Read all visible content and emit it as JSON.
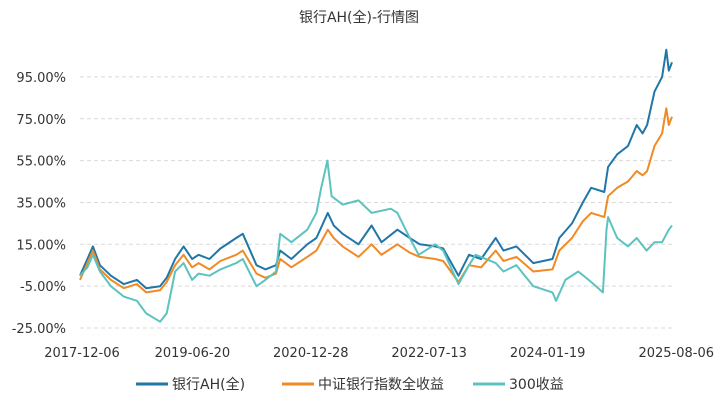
{
  "chart_data": {
    "type": "line",
    "title": "银行AH(全)-行情图",
    "y_unit": "%",
    "ylim": [
      -25,
      105
    ],
    "y_ticks": [
      -25,
      -5,
      15,
      35,
      55,
      75,
      95
    ],
    "y_tick_labels": [
      "-25.00%",
      "-5.00%",
      "15.00%",
      "35.00%",
      "55.00%",
      "75.00%",
      "95.00%"
    ],
    "x_range": [
      "2017-12-06",
      "2025-08-06"
    ],
    "x_tick_labels": [
      "2017-12-06",
      "2019-06-20",
      "2020-12-28",
      "2022-07-13",
      "2024-01-19",
      "2025-08-06"
    ],
    "grid": "horizontal dashed",
    "legend_position": "bottom",
    "series": [
      {
        "name": "银行AH(全)",
        "color": "#2176a8",
        "points": [
          [
            "2017-12-06",
            0
          ],
          [
            "2018-01-10",
            8
          ],
          [
            "2018-02-05",
            14
          ],
          [
            "2018-03-10",
            5
          ],
          [
            "2018-05-01",
            0
          ],
          [
            "2018-07-01",
            -4
          ],
          [
            "2018-09-01",
            -2
          ],
          [
            "2018-10-15",
            -6
          ],
          [
            "2018-12-20",
            -5
          ],
          [
            "2019-01-20",
            -1
          ],
          [
            "2019-03-01",
            8
          ],
          [
            "2019-04-10",
            14
          ],
          [
            "2019-05-20",
            8
          ],
          [
            "2019-06-20",
            10
          ],
          [
            "2019-08-10",
            8
          ],
          [
            "2019-10-01",
            13
          ],
          [
            "2019-12-15",
            18
          ],
          [
            "2020-01-15",
            20
          ],
          [
            "2020-03-20",
            5
          ],
          [
            "2020-05-01",
            3
          ],
          [
            "2020-06-20",
            5
          ],
          [
            "2020-07-10",
            12
          ],
          [
            "2020-09-01",
            8
          ],
          [
            "2020-11-15",
            15
          ],
          [
            "2020-12-28",
            18
          ],
          [
            "2021-02-20",
            30
          ],
          [
            "2021-03-20",
            24
          ],
          [
            "2021-05-01",
            20
          ],
          [
            "2021-07-15",
            15
          ],
          [
            "2021-09-15",
            24
          ],
          [
            "2021-11-01",
            16
          ],
          [
            "2022-01-15",
            22
          ],
          [
            "2022-03-15",
            18
          ],
          [
            "2022-05-01",
            15
          ],
          [
            "2022-07-13",
            14
          ],
          [
            "2022-08-20",
            13
          ],
          [
            "2022-10-31",
            0
          ],
          [
            "2022-12-20",
            10
          ],
          [
            "2023-02-15",
            8
          ],
          [
            "2023-04-25",
            18
          ],
          [
            "2023-06-01",
            12
          ],
          [
            "2023-08-01",
            14
          ],
          [
            "2023-10-20",
            6
          ],
          [
            "2024-01-19",
            8
          ],
          [
            "2024-02-20",
            18
          ],
          [
            "2024-04-20",
            25
          ],
          [
            "2024-06-10",
            35
          ],
          [
            "2024-07-20",
            42
          ],
          [
            "2024-09-20",
            40
          ],
          [
            "2024-10-08",
            52
          ],
          [
            "2024-11-20",
            58
          ],
          [
            "2025-01-10",
            62
          ],
          [
            "2025-02-20",
            72
          ],
          [
            "2025-03-20",
            68
          ],
          [
            "2025-04-10",
            72
          ],
          [
            "2025-05-15",
            88
          ],
          [
            "2025-06-20",
            95
          ],
          [
            "2025-07-10",
            108
          ],
          [
            "2025-07-22",
            98
          ],
          [
            "2025-08-06",
            102
          ]
        ]
      },
      {
        "name": "中证银行指数全收益",
        "color": "#f08a24",
        "points": [
          [
            "2017-12-06",
            -2
          ],
          [
            "2018-01-10",
            6
          ],
          [
            "2018-02-05",
            12
          ],
          [
            "2018-03-10",
            3
          ],
          [
            "2018-05-01",
            -2
          ],
          [
            "2018-07-01",
            -6
          ],
          [
            "2018-09-01",
            -4
          ],
          [
            "2018-10-15",
            -8
          ],
          [
            "2018-12-20",
            -7
          ],
          [
            "2019-01-20",
            -3
          ],
          [
            "2019-03-01",
            5
          ],
          [
            "2019-04-10",
            10
          ],
          [
            "2019-05-20",
            4
          ],
          [
            "2019-06-20",
            6
          ],
          [
            "2019-08-10",
            3
          ],
          [
            "2019-10-01",
            7
          ],
          [
            "2019-12-15",
            10
          ],
          [
            "2020-01-15",
            12
          ],
          [
            "2020-03-20",
            1
          ],
          [
            "2020-05-01",
            -1
          ],
          [
            "2020-06-20",
            1
          ],
          [
            "2020-07-10",
            8
          ],
          [
            "2020-09-01",
            4
          ],
          [
            "2020-11-15",
            9
          ],
          [
            "2020-12-28",
            12
          ],
          [
            "2021-02-20",
            22
          ],
          [
            "2021-03-20",
            18
          ],
          [
            "2021-05-01",
            14
          ],
          [
            "2021-07-15",
            9
          ],
          [
            "2021-09-15",
            15
          ],
          [
            "2021-11-01",
            10
          ],
          [
            "2022-01-15",
            15
          ],
          [
            "2022-03-15",
            11
          ],
          [
            "2022-05-01",
            9
          ],
          [
            "2022-07-13",
            8
          ],
          [
            "2022-08-20",
            7
          ],
          [
            "2022-10-31",
            -3
          ],
          [
            "2022-12-20",
            5
          ],
          [
            "2023-02-15",
            4
          ],
          [
            "2023-04-25",
            12
          ],
          [
            "2023-06-01",
            7
          ],
          [
            "2023-08-01",
            9
          ],
          [
            "2023-10-20",
            2
          ],
          [
            "2024-01-19",
            3
          ],
          [
            "2024-02-20",
            12
          ],
          [
            "2024-04-20",
            18
          ],
          [
            "2024-06-10",
            26
          ],
          [
            "2024-07-20",
            30
          ],
          [
            "2024-09-20",
            28
          ],
          [
            "2024-10-08",
            38
          ],
          [
            "2024-11-20",
            42
          ],
          [
            "2025-01-10",
            45
          ],
          [
            "2025-02-20",
            50
          ],
          [
            "2025-03-20",
            48
          ],
          [
            "2025-04-10",
            50
          ],
          [
            "2025-05-15",
            62
          ],
          [
            "2025-06-20",
            68
          ],
          [
            "2025-07-10",
            80
          ],
          [
            "2025-07-22",
            72
          ],
          [
            "2025-08-06",
            76
          ]
        ]
      },
      {
        "name": "300收益",
        "color": "#5cc3bf",
        "points": [
          [
            "2017-12-06",
            0
          ],
          [
            "2018-01-10",
            4
          ],
          [
            "2018-02-05",
            10
          ],
          [
            "2018-03-10",
            2
          ],
          [
            "2018-05-01",
            -5
          ],
          [
            "2018-07-01",
            -10
          ],
          [
            "2018-09-01",
            -12
          ],
          [
            "2018-10-15",
            -18
          ],
          [
            "2018-12-20",
            -22
          ],
          [
            "2019-01-20",
            -18
          ],
          [
            "2019-03-01",
            2
          ],
          [
            "2019-04-10",
            6
          ],
          [
            "2019-05-20",
            -2
          ],
          [
            "2019-06-20",
            1
          ],
          [
            "2019-08-10",
            0
          ],
          [
            "2019-10-01",
            3
          ],
          [
            "2019-12-15",
            6
          ],
          [
            "2020-01-15",
            8
          ],
          [
            "2020-03-20",
            -5
          ],
          [
            "2020-05-01",
            -2
          ],
          [
            "2020-06-20",
            2
          ],
          [
            "2020-07-10",
            20
          ],
          [
            "2020-09-01",
            16
          ],
          [
            "2020-11-15",
            22
          ],
          [
            "2020-12-28",
            30
          ],
          [
            "2021-01-20",
            42
          ],
          [
            "2021-02-18",
            55
          ],
          [
            "2021-03-10",
            38
          ],
          [
            "2021-05-01",
            34
          ],
          [
            "2021-07-15",
            36
          ],
          [
            "2021-09-15",
            30
          ],
          [
            "2021-12-15",
            32
          ],
          [
            "2022-01-15",
            30
          ],
          [
            "2022-03-15",
            18
          ],
          [
            "2022-04-26",
            10
          ],
          [
            "2022-07-13",
            15
          ],
          [
            "2022-08-20",
            12
          ],
          [
            "2022-10-31",
            -4
          ],
          [
            "2022-12-20",
            5
          ],
          [
            "2023-01-20",
            10
          ],
          [
            "2023-04-25",
            6
          ],
          [
            "2023-06-01",
            2
          ],
          [
            "2023-08-01",
            5
          ],
          [
            "2023-10-20",
            -5
          ],
          [
            "2024-01-19",
            -8
          ],
          [
            "2024-02-05",
            -12
          ],
          [
            "2024-03-20",
            -2
          ],
          [
            "2024-05-20",
            2
          ],
          [
            "2024-07-20",
            -3
          ],
          [
            "2024-09-13",
            -8
          ],
          [
            "2024-09-30",
            22
          ],
          [
            "2024-10-08",
            28
          ],
          [
            "2024-11-20",
            18
          ],
          [
            "2025-01-10",
            14
          ],
          [
            "2025-02-20",
            18
          ],
          [
            "2025-04-08",
            12
          ],
          [
            "2025-05-15",
            16
          ],
          [
            "2025-06-20",
            16
          ],
          [
            "2025-07-22",
            22
          ],
          [
            "2025-08-06",
            24
          ]
        ]
      }
    ]
  }
}
